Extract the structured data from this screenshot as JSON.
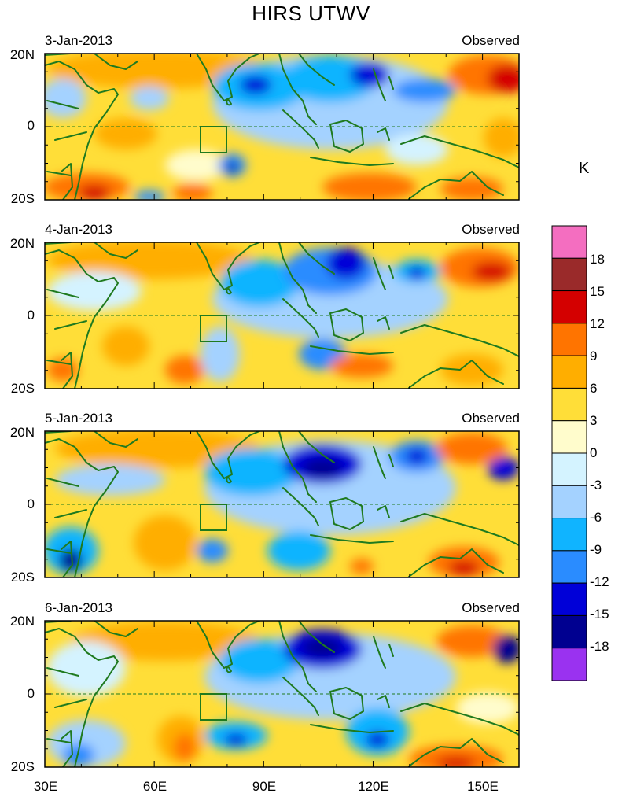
{
  "title": "HIRS UTWV",
  "units_label": "K",
  "panels": [
    {
      "date": "3-Jan-2013",
      "tag": "Observed"
    },
    {
      "date": "4-Jan-2013",
      "tag": "Observed"
    },
    {
      "date": "5-Jan-2013",
      "tag": "Observed"
    },
    {
      "date": "6-Jan-2013",
      "tag": "Observed"
    }
  ],
  "lat_labels": [
    "20N",
    "0",
    "20S"
  ],
  "lon_labels": [
    "30E",
    "60E",
    "90E",
    "120E",
    "150E"
  ],
  "colorbar": {
    "labels": [
      "18",
      "15",
      "12",
      "9",
      "6",
      "3",
      "0",
      "-3",
      "-6",
      "-9",
      "-12",
      "-15",
      "-18"
    ],
    "colors": [
      "#f46ec0",
      "#9a2a2a",
      "#d40000",
      "#ff7400",
      "#ffae00",
      "#ffde38",
      "#fffccc",
      "#d4f3ff",
      "#a4d2ff",
      "#10b4ff",
      "#2a8cff",
      "#0000d8",
      "#000090",
      "#9a32f0"
    ]
  },
  "map": {
    "lon_range": [
      30,
      160
    ],
    "lat_range": [
      -20,
      20
    ],
    "box_region": "73E-80E, 0-8S"
  }
}
